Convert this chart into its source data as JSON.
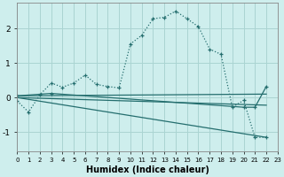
{
  "xlabel": "Humidex (Indice chaleur)",
  "bg_color": "#ceeeed",
  "grid_color": "#aad4d2",
  "line_color": "#246e6e",
  "xlim": [
    0,
    23
  ],
  "ylim": [
    -1.55,
    2.75
  ],
  "yticks": [
    -1,
    0,
    1,
    2
  ],
  "xticks": [
    0,
    1,
    2,
    3,
    4,
    5,
    6,
    7,
    8,
    9,
    10,
    11,
    12,
    13,
    14,
    15,
    16,
    17,
    18,
    19,
    20,
    21,
    22,
    23
  ],
  "curve_x": [
    0,
    1,
    2,
    3,
    4,
    5,
    6,
    7,
    8,
    9,
    10,
    11,
    12,
    13,
    14,
    15,
    16,
    17,
    18,
    19,
    20,
    21,
    22
  ],
  "curve_y": [
    -0.1,
    -0.42,
    0.08,
    0.42,
    0.3,
    0.42,
    0.65,
    0.38,
    0.32,
    0.28,
    1.55,
    1.8,
    2.28,
    2.32,
    2.5,
    2.28,
    2.05,
    1.4,
    1.25,
    -0.28,
    -0.08,
    -1.15,
    -1.15
  ],
  "line1_x": [
    0,
    22
  ],
  "line1_y": [
    0.05,
    0.1
  ],
  "line2_x": [
    0,
    22
  ],
  "line2_y": [
    0.0,
    -0.22
  ],
  "line3_x": [
    0,
    3,
    20,
    21,
    22
  ],
  "line3_y": [
    0.05,
    0.12,
    -0.28,
    -0.28,
    0.32
  ],
  "line4_x": [
    0,
    22
  ],
  "line4_y": [
    0.0,
    -1.15
  ]
}
